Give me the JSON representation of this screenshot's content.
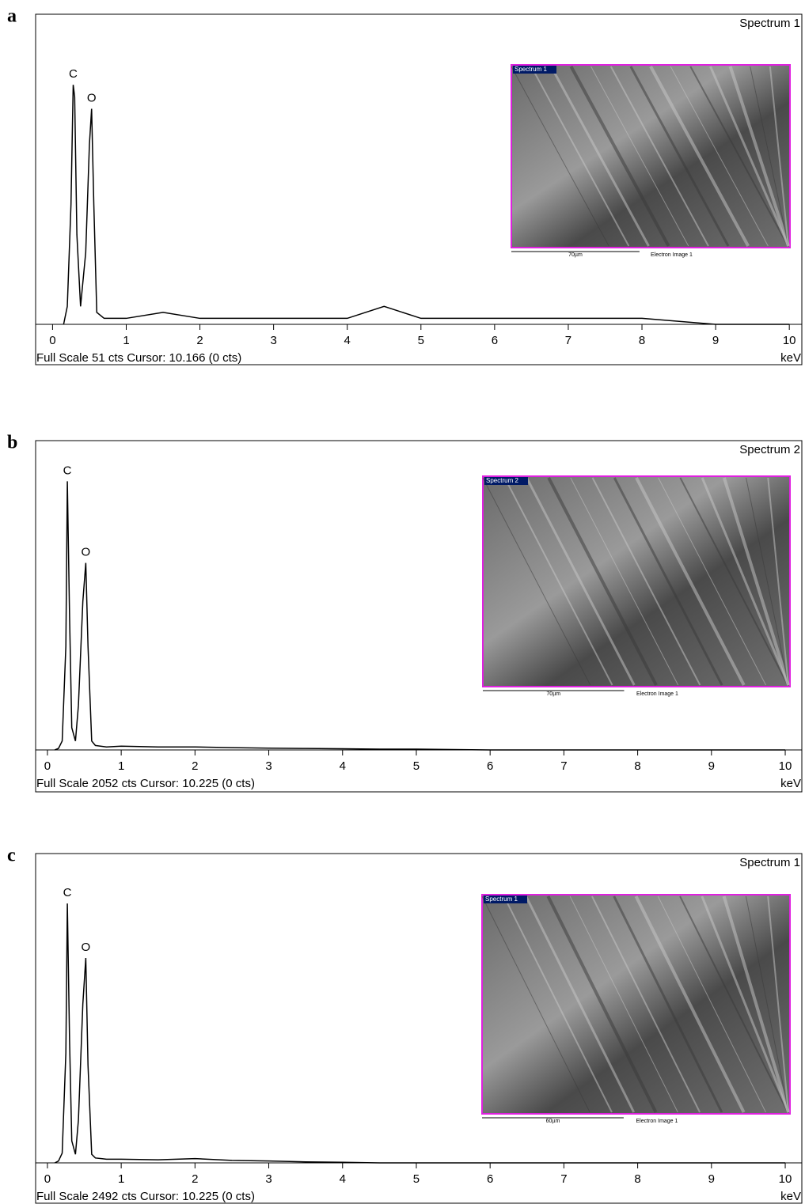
{
  "chart_data": [
    {
      "type": "line",
      "panel": "a",
      "title": "Spectrum 1",
      "footer": "Full Scale 51 cts Cursor: 10.166  (0 cts)",
      "x_unit": "keV",
      "xlim": [
        -0.23,
        10.17
      ],
      "xticks": [
        0,
        1,
        2,
        3,
        4,
        5,
        6,
        7,
        8,
        9,
        10
      ],
      "ylim": [
        0,
        51
      ],
      "x": [
        0.15,
        0.2,
        0.25,
        0.28,
        0.3,
        0.33,
        0.38,
        0.45,
        0.5,
        0.53,
        0.56,
        0.6,
        0.7,
        1.0,
        1.5,
        2.0,
        2.5,
        3.0,
        3.5,
        4.0,
        4.5,
        5.0,
        5.5,
        6.0,
        6.5,
        7.0,
        7.5,
        8.0,
        9.0,
        10.0
      ],
      "values": [
        0,
        3,
        20,
        40,
        38,
        15,
        3,
        12,
        30,
        36,
        20,
        2,
        1,
        1,
        2,
        1,
        1,
        1,
        1,
        1,
        3,
        1,
        1,
        1,
        1,
        1,
        1,
        1,
        0,
        0
      ],
      "color": "#000000",
      "annotations": [
        {
          "text": "C",
          "x": 0.28
        },
        {
          "text": "O",
          "x": 0.53
        }
      ],
      "inset": {
        "label": "Spectrum 1",
        "scale_bar": "70µm",
        "caption": "Electron Image 1"
      }
    },
    {
      "type": "line",
      "panel": "b",
      "title": "Spectrum 2",
      "footer": "Full Scale 2052 cts Cursor: 10.225  (0 cts)",
      "x_unit": "keV",
      "xlim": [
        -0.16,
        10.225
      ],
      "xticks": [
        0,
        1,
        2,
        3,
        4,
        5,
        6,
        7,
        8,
        9,
        10
      ],
      "ylim": [
        0,
        2052
      ],
      "x": [
        0.1,
        0.15,
        0.2,
        0.25,
        0.27,
        0.3,
        0.33,
        0.38,
        0.42,
        0.48,
        0.52,
        0.55,
        0.6,
        0.65,
        0.8,
        1.0,
        1.5,
        2.0,
        2.5,
        3.0,
        3.5,
        4.0,
        4.5,
        5.0,
        6.0,
        7.0,
        8.0,
        9.0,
        10.0
      ],
      "values": [
        0,
        10,
        60,
        700,
        1810,
        900,
        150,
        60,
        300,
        1000,
        1260,
        700,
        60,
        30,
        20,
        25,
        20,
        20,
        15,
        12,
        10,
        8,
        5,
        5,
        0,
        0,
        0,
        0,
        0
      ],
      "color": "#000000",
      "annotations": [
        {
          "text": "C",
          "x": 0.27
        },
        {
          "text": "O",
          "x": 0.52
        }
      ],
      "inset": {
        "label": "Spectrum 2",
        "scale_bar": "70µm",
        "caption": "Electron Image 1"
      }
    },
    {
      "type": "line",
      "panel": "c",
      "title": "Spectrum 1",
      "footer": "Full Scale 2492 cts Cursor: 10.225  (0 cts)",
      "x_unit": "keV",
      "xlim": [
        -0.16,
        10.225
      ],
      "xticks": [
        0,
        1,
        2,
        3,
        4,
        5,
        6,
        7,
        8,
        9,
        10
      ],
      "ylim": [
        0,
        2492
      ],
      "x": [
        0.1,
        0.15,
        0.2,
        0.25,
        0.27,
        0.3,
        0.33,
        0.38,
        0.42,
        0.48,
        0.52,
        0.55,
        0.6,
        0.65,
        0.8,
        1.0,
        1.5,
        2.0,
        2.5,
        3.0,
        3.5,
        4.0,
        4.5,
        5.0,
        6.0,
        7.0,
        8.0,
        9.0,
        10.0
      ],
      "values": [
        0,
        15,
        80,
        900,
        2122,
        1000,
        180,
        70,
        350,
        1300,
        1676,
        800,
        70,
        40,
        30,
        30,
        25,
        35,
        20,
        15,
        8,
        5,
        0,
        0,
        0,
        0,
        0,
        0,
        0
      ],
      "color": "#000000",
      "annotations": [
        {
          "text": "C",
          "x": 0.27
        },
        {
          "text": "O",
          "x": 0.52
        }
      ],
      "inset": {
        "label": "Spectrum 1",
        "scale_bar": "60µm",
        "caption": "Electron Image 1"
      }
    }
  ]
}
